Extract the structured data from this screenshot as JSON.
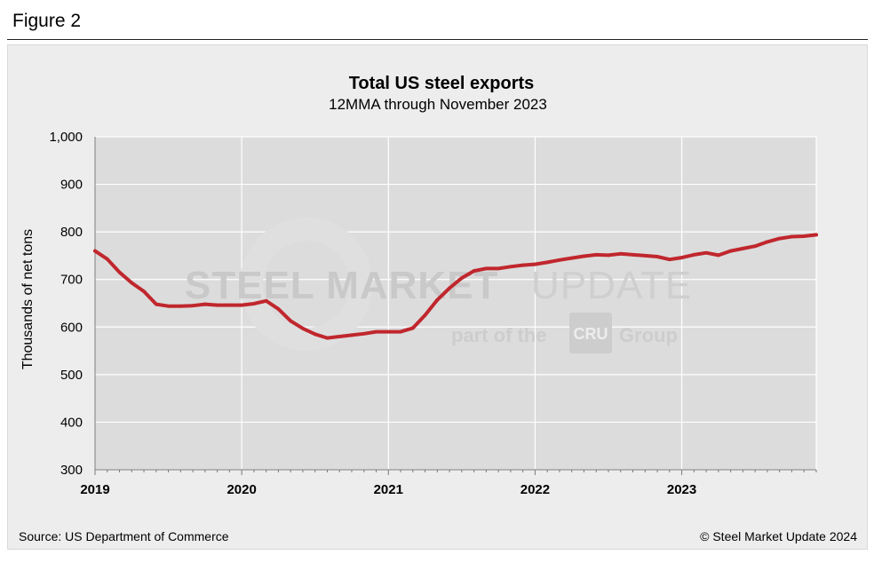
{
  "figure_label": "Figure 2",
  "watermark": {
    "brand_bold": "STEEL MARKET",
    "brand_light": "UPDATE",
    "tagline_pre": "part of the",
    "tagline_logo": "CRU",
    "tagline_post": "Group"
  },
  "footer": {
    "source": "Source: US Department of Commerce",
    "copyright": "© Steel Market Update 2024"
  },
  "colors": {
    "line": "#c0272d",
    "plot_bg": "#dcdcdc",
    "grid": "#ffffff"
  },
  "chart_data": {
    "type": "line",
    "title": "Total US steel exports",
    "subtitle": "12MMA through November 2023",
    "xlabel": "",
    "ylabel": "Thousands of net tons",
    "ylim": [
      300,
      1000
    ],
    "yticks": [
      300,
      400,
      500,
      600,
      700,
      800,
      900,
      1000
    ],
    "ytick_labels": [
      "300",
      "400",
      "500",
      "600",
      "700",
      "800",
      "900",
      "1,000"
    ],
    "xlim": [
      2019.0,
      2023.917
    ],
    "xticks": [
      2019,
      2020,
      2021,
      2022,
      2023
    ],
    "xtick_labels": [
      "2019",
      "2020",
      "2021",
      "2022",
      "2023"
    ],
    "grid": true,
    "series": [
      {
        "name": "Total US steel exports 12MMA",
        "x": [
          2019.0,
          2019.083,
          2019.167,
          2019.25,
          2019.333,
          2019.417,
          2019.5,
          2019.583,
          2019.667,
          2019.75,
          2019.833,
          2019.917,
          2020.0,
          2020.083,
          2020.167,
          2020.25,
          2020.333,
          2020.417,
          2020.5,
          2020.583,
          2020.667,
          2020.75,
          2020.833,
          2020.917,
          2021.0,
          2021.083,
          2021.167,
          2021.25,
          2021.333,
          2021.417,
          2021.5,
          2021.583,
          2021.667,
          2021.75,
          2021.833,
          2021.917,
          2022.0,
          2022.083,
          2022.167,
          2022.25,
          2022.333,
          2022.417,
          2022.5,
          2022.583,
          2022.667,
          2022.75,
          2022.833,
          2022.917,
          2023.0,
          2023.083,
          2023.167,
          2023.25,
          2023.333,
          2023.417,
          2023.5,
          2023.583,
          2023.667,
          2023.75,
          2023.833,
          2023.917
        ],
        "values": [
          760,
          743,
          715,
          693,
          675,
          648,
          644,
          644,
          645,
          648,
          646,
          646,
          646,
          649,
          655,
          638,
          613,
          597,
          585,
          577,
          580,
          583,
          586,
          590,
          590,
          590,
          598,
          625,
          657,
          682,
          703,
          718,
          723,
          723,
          727,
          730,
          732,
          736,
          741,
          745,
          749,
          752,
          751,
          754,
          752,
          750,
          748,
          742,
          746,
          752,
          756,
          751,
          760,
          765,
          770,
          779,
          786,
          790,
          791,
          794
        ]
      }
    ]
  }
}
